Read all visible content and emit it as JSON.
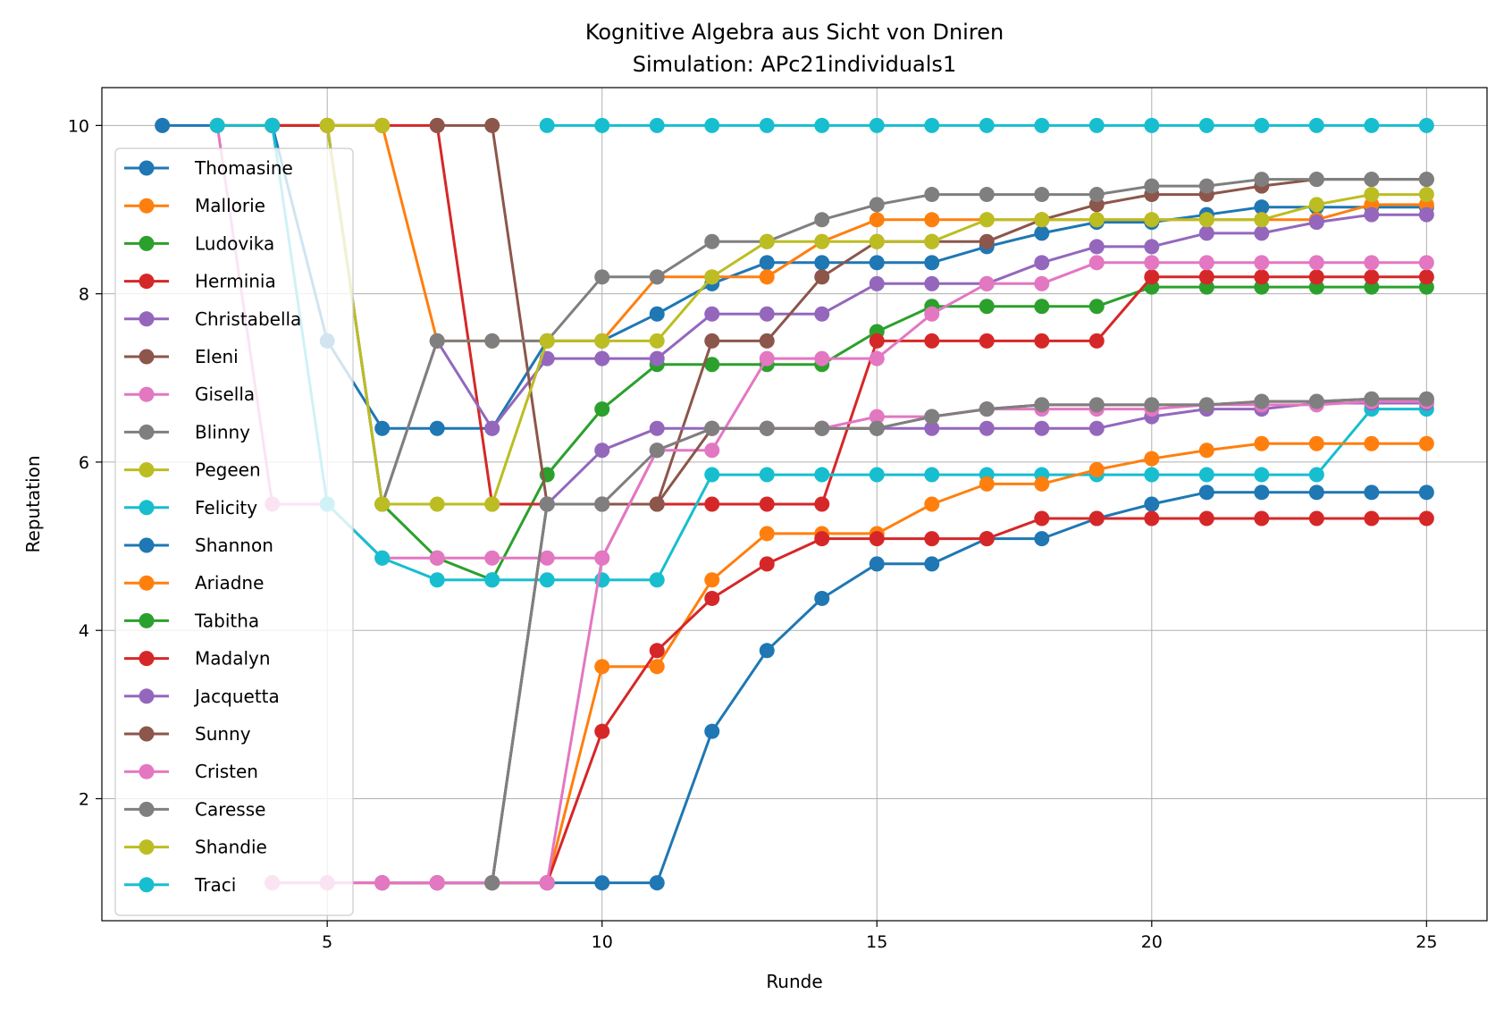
{
  "chart_data": {
    "type": "line",
    "title": "Kognitive Algebra aus Sicht von Dniren",
    "subtitle": "Simulation: APc21individuals1",
    "xlabel": "Runde",
    "ylabel": "Reputation",
    "xlim": [
      0.9,
      26.1
    ],
    "ylim": [
      0.55,
      10.45
    ],
    "xticks": [
      5,
      10,
      15,
      20,
      25
    ],
    "yticks": [
      2,
      4,
      6,
      8,
      10
    ],
    "grid": true,
    "legend_position": "left",
    "series": [
      {
        "name": "Thomasine",
        "color": "#1f77b4",
        "x": [
          2,
          3,
          4,
          5,
          6,
          7,
          8,
          9,
          10,
          11,
          12,
          13,
          14,
          15,
          16,
          17,
          18,
          19,
          20,
          21,
          22,
          23,
          24,
          25
        ],
        "y": [
          10,
          10,
          10,
          7.44,
          6.4,
          6.4,
          6.4,
          7.44,
          7.44,
          7.76,
          8.12,
          8.37,
          8.37,
          8.37,
          8.37,
          8.56,
          8.72,
          8.85,
          8.85,
          8.94,
          9.03,
          9.03,
          9.03,
          9.03
        ]
      },
      {
        "name": "Mallorie",
        "color": "#ff7f0e",
        "x": [
          3,
          4,
          5,
          6,
          7,
          8,
          9,
          10,
          11,
          12,
          13,
          14,
          15,
          16,
          17,
          18,
          19,
          20,
          21,
          22,
          23,
          24,
          25
        ],
        "y": [
          10,
          10,
          10,
          10,
          7.44,
          7.44,
          7.44,
          7.44,
          8.2,
          8.2,
          8.2,
          8.62,
          8.88,
          8.88,
          8.88,
          8.88,
          8.88,
          8.88,
          8.88,
          8.88,
          8.88,
          9.06,
          9.06
        ]
      },
      {
        "name": "Ludovika",
        "color": "#2ca02c",
        "x": [
          4,
          5,
          6,
          7,
          8,
          9,
          10,
          11,
          12,
          13,
          14,
          15,
          16,
          17,
          18,
          19,
          20,
          21,
          22,
          23,
          24,
          25
        ],
        "y": [
          10,
          10,
          5.5,
          4.86,
          4.6,
          5.85,
          6.63,
          7.16,
          7.16,
          7.16,
          7.16,
          7.55,
          7.85,
          7.85,
          7.85,
          7.85,
          8.08,
          8.08,
          8.08,
          8.08,
          8.08,
          8.08
        ]
      },
      {
        "name": "Herminia",
        "color": "#d62728",
        "x": [
          4,
          5,
          6,
          7,
          8,
          9,
          10,
          11,
          12,
          13,
          14,
          15,
          16,
          17,
          18,
          19,
          20,
          21,
          22,
          23,
          24,
          25
        ],
        "y": [
          10,
          10,
          10,
          10,
          5.5,
          5.5,
          5.5,
          5.5,
          5.5,
          5.5,
          5.5,
          7.44,
          7.44,
          7.44,
          7.44,
          7.44,
          8.2,
          8.2,
          8.2,
          8.2,
          8.2,
          8.2
        ]
      },
      {
        "name": "Christabella",
        "color": "#9467bd",
        "x": [
          5,
          6,
          7,
          8,
          9,
          10,
          11,
          12,
          13,
          14,
          15,
          16,
          17,
          18,
          19,
          20,
          21,
          22,
          23,
          24,
          25
        ],
        "y": [
          10,
          5.5,
          7.44,
          6.4,
          7.23,
          7.23,
          7.23,
          7.76,
          7.76,
          7.76,
          8.12,
          8.12,
          8.12,
          8.37,
          8.56,
          8.56,
          8.72,
          8.72,
          8.85,
          8.94,
          8.94
        ]
      },
      {
        "name": "Eleni",
        "color": "#8c564b",
        "x": [
          7,
          8,
          9,
          10,
          11,
          12,
          13,
          14,
          15,
          16,
          17,
          18,
          19,
          20,
          21,
          22,
          23,
          24,
          25
        ],
        "y": [
          10,
          10,
          5.5,
          5.5,
          5.5,
          7.44,
          7.44,
          8.2,
          8.62,
          8.62,
          8.62,
          8.88,
          9.06,
          9.18,
          9.18,
          9.28,
          9.36,
          9.36,
          9.36
        ]
      },
      {
        "name": "Gisella",
        "color": "#e377c2",
        "x": [
          3,
          4,
          5,
          6,
          7,
          8,
          9,
          10,
          11,
          12,
          13,
          14,
          15,
          16,
          17,
          18,
          19,
          20,
          21,
          22,
          23,
          24,
          25
        ],
        "y": [
          10,
          5.5,
          5.5,
          4.86,
          4.86,
          4.86,
          4.86,
          4.86,
          6.14,
          6.14,
          7.23,
          7.23,
          7.23,
          7.76,
          8.12,
          8.12,
          8.37,
          8.37,
          8.37,
          8.37,
          8.37,
          8.37,
          8.37
        ]
      },
      {
        "name": "Blinny",
        "color": "#7f7f7f",
        "x": [
          6,
          7,
          8,
          9,
          10,
          11,
          12,
          13,
          14,
          15,
          16,
          17,
          18,
          19,
          20,
          21,
          22,
          23,
          24,
          25
        ],
        "y": [
          5.5,
          7.44,
          7.44,
          7.44,
          8.2,
          8.2,
          8.62,
          8.62,
          8.88,
          9.06,
          9.18,
          9.18,
          9.18,
          9.18,
          9.28,
          9.28,
          9.36,
          9.36,
          9.36,
          9.36
        ]
      },
      {
        "name": "Pegeen",
        "color": "#bcbd22",
        "x": [
          5,
          6,
          7,
          8,
          9,
          10,
          11,
          12,
          13,
          14,
          15,
          16,
          17,
          18,
          19,
          20,
          21,
          22,
          23,
          24,
          25
        ],
        "y": [
          10,
          5.5,
          5.5,
          5.5,
          7.44,
          7.44,
          7.44,
          8.2,
          8.62,
          8.62,
          8.62,
          8.62,
          8.88,
          8.88,
          8.88,
          8.88,
          8.88,
          8.88,
          9.06,
          9.18,
          9.18
        ]
      },
      {
        "name": "Felicity",
        "color": "#17becf",
        "x": [
          3,
          4,
          5,
          6,
          7,
          8,
          9,
          10,
          11,
          12,
          13,
          14,
          15,
          16,
          17,
          18,
          19,
          20,
          21,
          22,
          23,
          24,
          25
        ],
        "y": [
          10,
          10,
          5.5,
          4.86,
          4.6,
          4.6,
          4.6,
          4.6,
          4.6,
          5.85,
          5.85,
          5.85,
          5.85,
          5.85,
          5.85,
          5.85,
          5.85,
          5.85,
          5.85,
          5.85,
          5.85,
          6.63,
          6.63
        ]
      },
      {
        "name": "Shannon",
        "color": "#1f77b4",
        "x": [
          6,
          7,
          8,
          9,
          10,
          11,
          12,
          13,
          14,
          15,
          16,
          17,
          18,
          19,
          20,
          21,
          22,
          23,
          24,
          25
        ],
        "y": [
          1,
          1,
          1,
          1,
          1,
          1,
          2.8,
          3.76,
          4.38,
          4.79,
          4.79,
          5.09,
          5.09,
          5.33,
          5.5,
          5.64,
          5.64,
          5.64,
          5.64,
          5.64
        ]
      },
      {
        "name": "Ariadne",
        "color": "#ff7f0e",
        "x": [
          6,
          7,
          8,
          9,
          10,
          11,
          12,
          13,
          14,
          15,
          16,
          17,
          18,
          19,
          20,
          21,
          22,
          23,
          24,
          25
        ],
        "y": [
          1,
          1,
          1,
          1,
          3.57,
          3.57,
          4.6,
          5.15,
          5.15,
          5.15,
          5.5,
          5.74,
          5.74,
          5.91,
          6.04,
          6.14,
          6.22,
          6.22,
          6.22,
          6.22
        ]
      },
      {
        "name": "Tabitha",
        "color": "#2ca02c",
        "x": [
          6,
          7,
          8,
          9
        ],
        "y": [
          1,
          1,
          1,
          1
        ]
      },
      {
        "name": "Madalyn",
        "color": "#d62728",
        "x": [
          4,
          5,
          6,
          7,
          8,
          9,
          10,
          11,
          12,
          13,
          14,
          15,
          16,
          17,
          18,
          19,
          20,
          21,
          22,
          23,
          24,
          25
        ],
        "y": [
          1,
          1,
          1,
          1,
          1,
          1,
          2.8,
          3.76,
          4.38,
          4.79,
          5.09,
          5.09,
          5.09,
          5.09,
          5.33,
          5.33,
          5.33,
          5.33,
          5.33,
          5.33,
          5.33,
          5.33
        ]
      },
      {
        "name": "Jacquetta",
        "color": "#9467bd",
        "x": [
          6,
          7,
          8,
          9,
          10,
          11,
          12,
          13,
          14,
          15,
          16,
          17,
          18,
          19,
          20,
          21,
          22,
          23,
          24,
          25
        ],
        "y": [
          1,
          1,
          1,
          5.5,
          6.14,
          6.4,
          6.4,
          6.4,
          6.4,
          6.4,
          6.4,
          6.4,
          6.4,
          6.4,
          6.54,
          6.63,
          6.63,
          6.7,
          6.7,
          6.7
        ]
      },
      {
        "name": "Sunny",
        "color": "#8c564b",
        "x": [
          8,
          9,
          10,
          11,
          12,
          13,
          14,
          15,
          16,
          17,
          18,
          19,
          20,
          21,
          22,
          23,
          24,
          25
        ],
        "y": [
          1,
          5.5,
          5.5,
          5.5,
          6.4,
          6.4,
          6.4,
          6.4,
          6.54,
          6.63,
          6.68,
          6.68,
          6.68,
          6.68,
          6.72,
          6.72,
          6.75,
          6.75
        ]
      },
      {
        "name": "Cristen",
        "color": "#e377c2",
        "x": [
          4,
          5,
          6,
          7,
          8,
          9,
          10,
          11,
          12,
          13,
          14,
          15,
          16,
          17,
          18,
          19,
          20,
          21,
          22,
          23,
          24,
          25
        ],
        "y": [
          1,
          1,
          1,
          1,
          1,
          1,
          4.86,
          6.14,
          6.4,
          6.4,
          6.4,
          6.54,
          6.54,
          6.63,
          6.63,
          6.63,
          6.63,
          6.68,
          6.68,
          6.68,
          6.72,
          6.72
        ]
      },
      {
        "name": "Caresse",
        "color": "#7f7f7f",
        "x": [
          8,
          9,
          10,
          11,
          12,
          13,
          14,
          15,
          16,
          17,
          18,
          19,
          20,
          21,
          22,
          23,
          24,
          25
        ],
        "y": [
          1,
          5.5,
          5.5,
          6.14,
          6.4,
          6.4,
          6.4,
          6.4,
          6.54,
          6.63,
          6.68,
          6.68,
          6.68,
          6.68,
          6.72,
          6.72,
          6.75,
          6.75
        ]
      },
      {
        "name": "Shandie",
        "color": "#bcbd22",
        "x": [
          5,
          6
        ],
        "y": [
          10,
          10
        ]
      },
      {
        "name": "Traci",
        "color": "#17becf",
        "x": [
          9,
          10,
          11,
          12,
          13,
          14,
          15,
          16,
          17,
          18,
          19,
          20,
          21,
          22,
          23,
          24,
          25
        ],
        "y": [
          10,
          10,
          10,
          10,
          10,
          10,
          10,
          10,
          10,
          10,
          10,
          10,
          10,
          10,
          10,
          10,
          10
        ]
      }
    ]
  }
}
